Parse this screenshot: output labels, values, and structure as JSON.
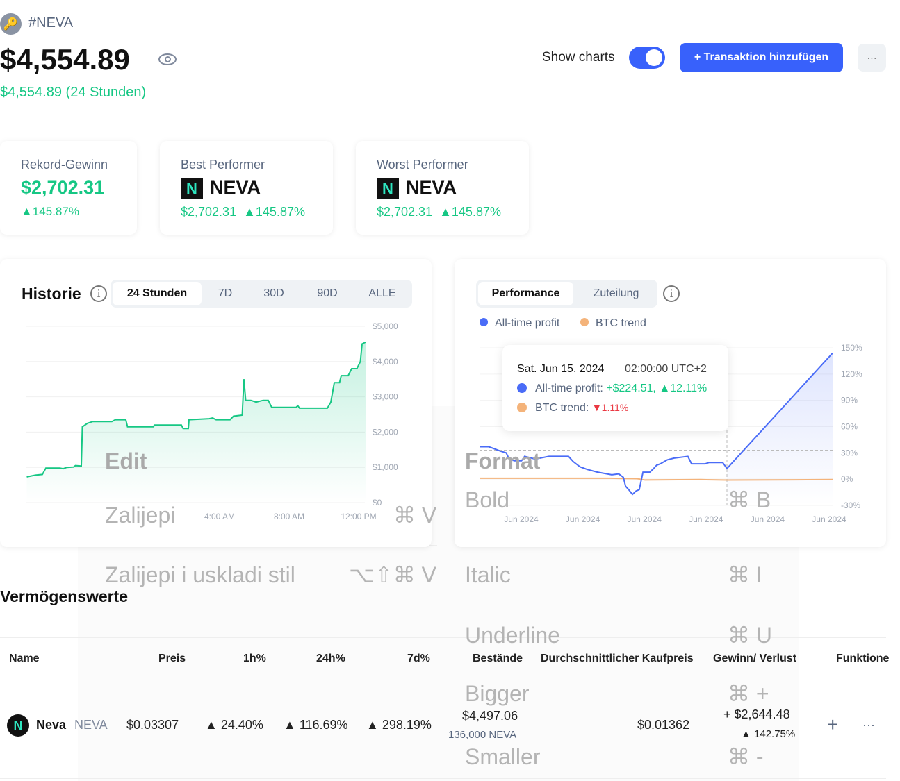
{
  "header": {
    "tag": "#NEVA",
    "balance": "$4,554.89",
    "change": "$4,554.89 (24 Stunden)",
    "show_charts_label": "Show charts",
    "show_charts_on": true,
    "add_transaction": "+ Transaktion hinzufügen",
    "more": "···"
  },
  "stats": [
    {
      "label": "Rekord-Gewinn",
      "value": "$2,702.31",
      "pct": "▲145.87%"
    },
    {
      "label": "Best Performer",
      "coin": "NEVA",
      "value": "$2,702.31",
      "pct": "▲145.87%"
    },
    {
      "label": "Worst Performer",
      "coin": "NEVA",
      "value": "$2,702.31",
      "pct": "▲145.87%"
    }
  ],
  "history": {
    "title": "Historie",
    "tabs": [
      "24 Stunden",
      "7D",
      "30D",
      "90D",
      "ALLE"
    ],
    "active_tab": "24 Stunden"
  },
  "performance": {
    "tabs": [
      "Performance",
      "Zuteilung"
    ],
    "active_tab": "Performance",
    "legend": [
      "All-time profit",
      "BTC trend"
    ],
    "tooltip": {
      "date": "Sat. Jun 15, 2024",
      "time": "02:00:00 UTC+2",
      "profit_label": "All-time profit:",
      "profit_value": "+$224.51,",
      "profit_pct": "▲12.11%",
      "btc_label": "BTC trend:",
      "btc_pct": "▼1.11%"
    }
  },
  "colors": {
    "green": "#16c784",
    "blue": "#4a6cf7",
    "orange": "#f4b37a",
    "red": "#ea3943",
    "accent": "#3861fb"
  },
  "chart_data": [
    {
      "type": "area",
      "ylim": [
        0,
        5000
      ],
      "yticks": [
        "$0",
        "$1,000",
        "$2,000",
        "$3,000",
        "$4,000",
        "$5,000"
      ],
      "ytick_values": [
        0,
        1000,
        2000,
        3000,
        4000,
        5000
      ],
      "xticks": [
        "4:00 AM",
        "8:00 AM",
        "12:00 PM"
      ],
      "xtick_values": [
        4,
        8,
        12
      ],
      "series": [
        {
          "x": [
            -7.1,
            -6.6,
            -6.2,
            -6.0,
            -5.2,
            -5.0,
            -4.8,
            -4.4,
            -4.3,
            -3.96,
            -3.9,
            -3.6,
            -3.3,
            -2.2,
            -2.0,
            -1.4,
            -1.3,
            0.2,
            0.24,
            1.8,
            1.9,
            2.2,
            2.24,
            3.4,
            3.6,
            3.8,
            4.6,
            4.8,
            5.3,
            5.4,
            5.5,
            5.8,
            6.1,
            6.5,
            6.8,
            7.0,
            8.4,
            8.5,
            8.6,
            10.2,
            10.4,
            10.6,
            10.9,
            11.0,
            11.4,
            11.6,
            11.9,
            12.1,
            12.2,
            12.4
          ],
          "y": [
            730,
            780,
            800,
            980,
            980,
            960,
            1000,
            1010,
            1050,
            1040,
            2150,
            2250,
            2300,
            2300,
            2350,
            2350,
            2150,
            2150,
            2200,
            2200,
            2100,
            2100,
            2350,
            2380,
            2400,
            2350,
            2350,
            2450,
            2480,
            3500,
            2900,
            2900,
            2850,
            2900,
            2900,
            2700,
            2700,
            2750,
            2680,
            2680,
            2850,
            3400,
            3400,
            3600,
            3600,
            3800,
            3800,
            4000,
            4500,
            4550
          ]
        }
      ]
    },
    {
      "type": "line",
      "ylim": [
        -30,
        150
      ],
      "yticks": [
        "-30%",
        "0%",
        "30%",
        "60%",
        "90%",
        "120%",
        "150%"
      ],
      "ytick_values": [
        -30,
        0,
        30,
        60,
        90,
        120,
        150
      ],
      "xticks": [
        "Jun 2024",
        "Jun 2024",
        "Jun 2024",
        "Jun 2024",
        "Jun 2024",
        "Jun 2024"
      ],
      "series": [
        {
          "name": "All-time profit",
          "x": [
            10.32,
            10.49,
            10.58,
            10.71,
            10.82,
            10.87,
            10.97,
            11.11,
            11.17,
            11.37,
            11.63,
            12.0,
            12.09,
            12.22,
            12.36,
            12.55,
            12.82,
            12.95,
            13.04,
            13.08,
            13.14,
            13.21,
            13.28,
            13.34,
            13.41,
            13.54,
            13.61,
            13.67,
            13.74,
            13.87,
            14.0,
            14.26,
            14.33,
            14.59,
            14.66,
            14.92,
            15.0,
            17.0
          ],
          "y": [
            37,
            37,
            35,
            32,
            30,
            24,
            21,
            21,
            26,
            23,
            26,
            26,
            20,
            14,
            11,
            8,
            5,
            6,
            2,
            -8,
            -12,
            -17.5,
            -13.5,
            -12,
            8,
            8,
            12,
            16,
            17.5,
            22,
            24,
            26,
            17.5,
            17.5,
            19,
            19,
            12.1,
            144
          ]
        },
        {
          "name": "BTC trend",
          "x": [
            10.32,
            11.5,
            12.8,
            13.3,
            13.45,
            14.5,
            15.0,
            17.0
          ],
          "y": [
            1,
            1,
            1,
            0.5,
            -1,
            -0.5,
            -1.1,
            -0.5
          ]
        }
      ]
    }
  ],
  "assets": {
    "title": "Vermögenswerte",
    "columns": [
      "Name",
      "Preis",
      "1h%",
      "24h%",
      "7d%",
      "Bestände",
      "Durchschnittlicher Kaufpreis",
      "Gewinn/ Verlust",
      "Funktione"
    ],
    "rows": [
      {
        "name": "Neva",
        "symbol": "NEVA",
        "price": "$0.03307",
        "h1": "▲ 24.40%",
        "h24": "▲ 116.69%",
        "d7": "▲ 298.19%",
        "holdings": "$4,497.06",
        "holdings_qty": "136,000 NEVA",
        "avg_price": "$0.01362",
        "pnl": "+ $2,644.48",
        "pnl_pct": "▲ 142.75%",
        "add": "+",
        "more": "···"
      }
    ]
  },
  "context_menu": {
    "edit": {
      "title": "Edit",
      "items": [
        {
          "label": "Zalijepi",
          "shortcut": "⌘ V"
        },
        {
          "label": "Zalijepi i uskladi stil",
          "shortcut": "⌥⇧⌘ V"
        }
      ]
    },
    "format": {
      "title": "Format",
      "items": [
        {
          "label": "Bold",
          "shortcut": "⌘ B"
        },
        {
          "label": "Italic",
          "shortcut": "⌘ I"
        },
        {
          "label": "Underline",
          "shortcut": "⌘ U"
        },
        {
          "label": "Bigger",
          "shortcut": "⌘ +"
        },
        {
          "label": "Smaller",
          "shortcut": "⌘ -"
        }
      ]
    }
  }
}
